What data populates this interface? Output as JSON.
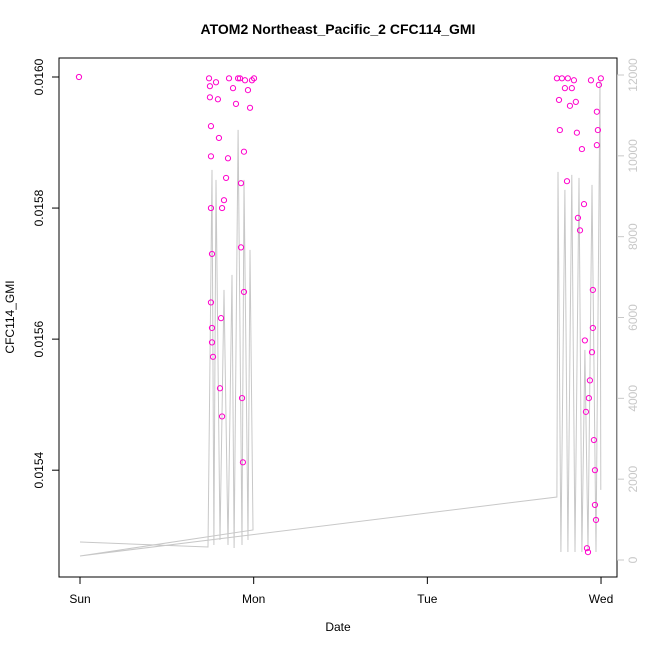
{
  "chart_data": {
    "type": "scatter",
    "title": "ATOM2 Northeast_Pacific_2 CFC114_GMI",
    "xlabel": "Date",
    "ylabel": "CFC114_GMI",
    "xlim": [
      -0.121,
      3.092
    ],
    "xticks": [
      {
        "value": 0,
        "label": "Sun"
      },
      {
        "value": 1,
        "label": "Mon"
      },
      {
        "value": 2,
        "label": "Tue"
      },
      {
        "value": 3,
        "label": "Wed"
      }
    ],
    "ylim": [
      0.015237,
      0.016029
    ],
    "yticks": [
      0.0154,
      0.0156,
      0.0158,
      {
        "value": 0.016,
        "label": "0.0160"
      }
    ],
    "y2lim": [
      -421,
      12421
    ],
    "y2ticks": [
      0,
      2000,
      4000,
      6000,
      8000,
      10000,
      12000
    ],
    "y2color": "#c8c8c8",
    "points": {
      "color": "#ff00cc",
      "x": [
        -0.006,
        0.743,
        0.748,
        0.748,
        0.754,
        0.754,
        0.754,
        0.76,
        0.754,
        0.76,
        0.76,
        0.766,
        0.783,
        0.794,
        0.8,
        0.806,
        0.818,
        0.812,
        0.818,
        0.829,
        0.841,
        0.852,
        0.858,
        0.881,
        0.898,
        0.91,
        0.921,
        0.927,
        0.927,
        0.933,
        0.938,
        0.944,
        0.944,
        0.95,
        0.967,
        0.979,
        0.99,
        1.002,
        2.746,
        2.758,
        2.763,
        2.775,
        2.792,
        2.804,
        2.809,
        2.821,
        2.832,
        2.844,
        2.855,
        2.861,
        2.867,
        2.879,
        2.89,
        2.902,
        2.907,
        2.913,
        2.919,
        2.925,
        2.936,
        2.942,
        2.948,
        2.953,
        2.959,
        2.965,
        2.965,
        2.971,
        2.976,
        2.976,
        2.982,
        2.988,
        2.999,
        2.953,
        2.93
      ],
      "values": [
        0.016,
        0.015998,
        0.015986,
        0.015969,
        0.015925,
        0.015879,
        0.0158,
        0.01573,
        0.015656,
        0.015617,
        0.015595,
        0.015573,
        0.015992,
        0.015966,
        0.015907,
        0.015525,
        0.015482,
        0.015632,
        0.0158,
        0.015812,
        0.015846,
        0.015876,
        0.015998,
        0.015983,
        0.015959,
        0.015998,
        0.015998,
        0.015838,
        0.01574,
        0.01551,
        0.015412,
        0.015886,
        0.015672,
        0.015995,
        0.01598,
        0.015953,
        0.015995,
        0.015998,
        0.015998,
        0.015965,
        0.015919,
        0.015998,
        0.015983,
        0.015841,
        0.015998,
        0.015956,
        0.015983,
        0.015995,
        0.015962,
        0.015915,
        0.015785,
        0.015766,
        0.01589,
        0.015806,
        0.015598,
        0.015489,
        0.015281,
        0.015275,
        0.015537,
        0.015995,
        0.01558,
        0.015617,
        0.015446,
        0.0154,
        0.015347,
        0.015324,
        0.015947,
        0.015896,
        0.015919,
        0.015988,
        0.015998,
        0.015675,
        0.01551
      ]
    },
    "line": {
      "axis": "y2",
      "color": "#c8c8c8",
      "x": [
        0,
        0.737,
        0.76,
        0.771,
        0.783,
        0.806,
        0.829,
        0.852,
        0.875,
        0.887,
        0.91,
        0.933,
        0.944,
        0.967,
        0.979,
        0.996,
        0,
        2.746,
        2.752,
        2.769,
        2.792,
        2.809,
        2.832,
        2.85,
        2.873,
        2.89,
        2.907,
        2.925,
        2.948,
        2.971,
        2.994,
        2.999
      ],
      "values": [
        446,
        322,
        9653,
        371,
        9405,
        495,
        6683,
        371,
        7054,
        297,
        10643,
        371,
        9405,
        495,
        7673,
        743,
        99,
        1559,
        9603,
        198,
        9158,
        198,
        9529,
        198,
        9455,
        198,
        5198,
        248,
        9281,
        198,
        11880,
        1733
      ]
    }
  }
}
